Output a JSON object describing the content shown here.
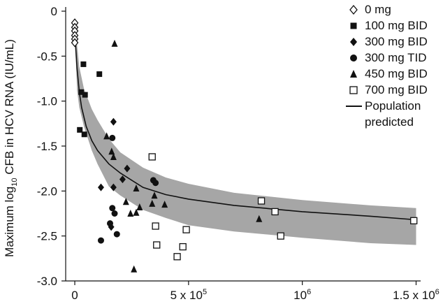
{
  "chart_data": {
    "type": "scatter",
    "title": "",
    "xlabel": "",
    "ylabel_prefix": "Maximum log",
    "ylabel_sub": "10",
    "ylabel_suffix": " CFB in HCV RNA (IU/mL)",
    "xlim": [
      -40000,
      1520000
    ],
    "ylim": [
      -3.0,
      0
    ],
    "x_ticks": [
      {
        "value": 0,
        "label": "0"
      },
      {
        "value": 500000,
        "label": "5 x 10",
        "sup": "5"
      },
      {
        "value": 1000000,
        "label": "10",
        "sup": "6"
      },
      {
        "value": 1500000,
        "label": "1.5 x 10",
        "sup": "6"
      }
    ],
    "y_ticks": [
      {
        "value": 0,
        "label": "0"
      },
      {
        "value": -0.5,
        "label": "-0.5"
      },
      {
        "value": -1.0,
        "label": "-1.0"
      },
      {
        "value": -1.5,
        "label": "-1.5"
      },
      {
        "value": -2.0,
        "label": "-2.0"
      },
      {
        "value": -2.5,
        "label": "-2.5"
      },
      {
        "value": -3.0,
        "label": "-3.0"
      }
    ],
    "grid": false,
    "legend_position": "top-right",
    "colors": {
      "markers": "#111111",
      "band": "#a6a6a6",
      "line": "#111111"
    },
    "series": [
      {
        "name": "0 mg",
        "marker": "diamond-open",
        "points": [
          [
            0,
            -0.13
          ],
          [
            0,
            -0.18
          ],
          [
            0,
            -0.22
          ],
          [
            0,
            -0.27
          ],
          [
            0,
            -0.31
          ],
          [
            0,
            -0.35
          ]
        ]
      },
      {
        "name": "100 mg BID",
        "marker": "square-filled",
        "points": [
          [
            38000,
            -0.59
          ],
          [
            108000,
            -0.7
          ],
          [
            28000,
            -0.9
          ],
          [
            45000,
            -0.93
          ],
          [
            22000,
            -1.32
          ],
          [
            42000,
            -1.37
          ]
        ]
      },
      {
        "name": "300 mg BID",
        "marker": "diamond-filled",
        "points": [
          [
            170000,
            -1.23
          ],
          [
            230000,
            -1.75
          ],
          [
            210000,
            -1.87
          ],
          [
            115000,
            -1.96
          ],
          [
            170000,
            -1.96
          ],
          [
            160000,
            -2.4
          ]
        ]
      },
      {
        "name": "300 mg TID",
        "marker": "circle-filled",
        "points": [
          [
            165000,
            -1.41
          ],
          [
            345000,
            -1.88
          ],
          [
            355000,
            -1.91
          ],
          [
            165000,
            -2.19
          ],
          [
            175000,
            -2.25
          ],
          [
            155000,
            -2.36
          ],
          [
            185000,
            -2.48
          ],
          [
            115000,
            -2.55
          ]
        ]
      },
      {
        "name": "450 mg BID",
        "marker": "triangle-filled",
        "points": [
          [
            175000,
            -0.36
          ],
          [
            140000,
            -1.39
          ],
          [
            162000,
            -1.56
          ],
          [
            170000,
            -1.62
          ],
          [
            270000,
            -1.97
          ],
          [
            350000,
            -2.05
          ],
          [
            225000,
            -2.12
          ],
          [
            340000,
            -2.14
          ],
          [
            285000,
            -2.18
          ],
          [
            395000,
            -2.15
          ],
          [
            245000,
            -2.25
          ],
          [
            270000,
            -2.24
          ],
          [
            810000,
            -2.31
          ],
          [
            260000,
            -2.87
          ]
        ]
      },
      {
        "name": "700 mg BID",
        "marker": "square-open",
        "points": [
          [
            340000,
            -1.62
          ],
          [
            355000,
            -2.39
          ],
          [
            490000,
            -2.43
          ],
          [
            360000,
            -2.6
          ],
          [
            475000,
            -2.62
          ],
          [
            450000,
            -2.73
          ],
          [
            820000,
            -2.11
          ],
          [
            880000,
            -2.23
          ],
          [
            905000,
            -2.5
          ],
          [
            1490000,
            -2.33
          ]
        ]
      }
    ],
    "population_predicted": {
      "name_line1": "Population",
      "name_line2": "predicted",
      "line": [
        [
          0,
          -0.2
        ],
        [
          5000,
          -0.45
        ],
        [
          10000,
          -0.64
        ],
        [
          20000,
          -0.9
        ],
        [
          30000,
          -1.07
        ],
        [
          50000,
          -1.28
        ],
        [
          75000,
          -1.44
        ],
        [
          100000,
          -1.55
        ],
        [
          150000,
          -1.7
        ],
        [
          200000,
          -1.8
        ],
        [
          300000,
          -1.96
        ],
        [
          400000,
          -2.04
        ],
        [
          500000,
          -2.09
        ],
        [
          700000,
          -2.16
        ],
        [
          1000000,
          -2.23
        ],
        [
          1300000,
          -2.28
        ],
        [
          1500000,
          -2.32
        ]
      ],
      "band_upper": [
        [
          0,
          -0.13
        ],
        [
          20000,
          -0.62
        ],
        [
          40000,
          -0.86
        ],
        [
          75000,
          -1.09
        ],
        [
          100000,
          -1.21
        ],
        [
          150000,
          -1.42
        ],
        [
          200000,
          -1.57
        ],
        [
          300000,
          -1.74
        ],
        [
          400000,
          -1.85
        ],
        [
          500000,
          -1.92
        ],
        [
          700000,
          -2.02
        ],
        [
          1000000,
          -2.1
        ],
        [
          1300000,
          -2.16
        ],
        [
          1500000,
          -2.19
        ]
      ],
      "band_lower": [
        [
          0,
          -0.25
        ],
        [
          10000,
          -0.88
        ],
        [
          20000,
          -1.07
        ],
        [
          40000,
          -1.28
        ],
        [
          75000,
          -1.55
        ],
        [
          100000,
          -1.7
        ],
        [
          150000,
          -1.95
        ],
        [
          200000,
          -2.05
        ],
        [
          300000,
          -2.21
        ],
        [
          400000,
          -2.3
        ],
        [
          500000,
          -2.38
        ],
        [
          700000,
          -2.45
        ],
        [
          1000000,
          -2.52
        ],
        [
          1300000,
          -2.58
        ],
        [
          1500000,
          -2.6
        ]
      ]
    }
  }
}
